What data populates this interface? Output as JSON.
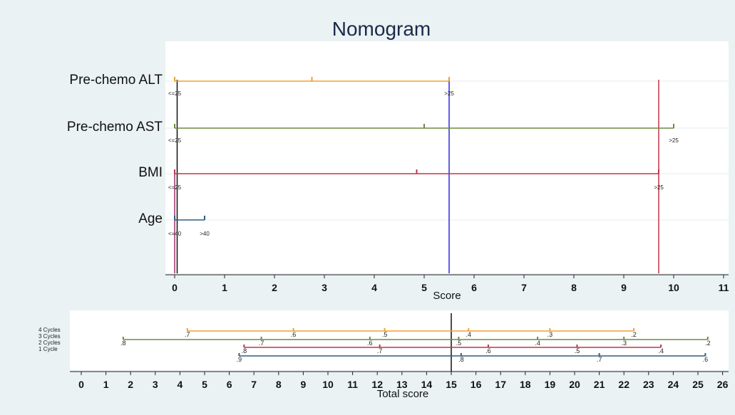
{
  "chart_data": [
    {
      "type": "nomogram",
      "title": "Nomogram",
      "xlabel": "Score",
      "xlim": [
        0,
        11
      ],
      "xticks": [
        0,
        1,
        2,
        3,
        4,
        5,
        6,
        7,
        8,
        9,
        10,
        11
      ],
      "variables": [
        {
          "name": "Pre-chemo ALT",
          "color": "#f0a030",
          "range": [
            0,
            5.5
          ],
          "tick_marks": [
            0,
            2.75,
            5.5
          ],
          "level_labels": [
            {
              "label": "<=25",
              "value": 0
            },
            {
              "label": ">25",
              "value": 5.5
            }
          ]
        },
        {
          "name": "Pre-chemo AST",
          "color": "#6b8c3e",
          "range": [
            0,
            10
          ],
          "tick_marks": [
            0,
            5,
            10
          ],
          "level_labels": [
            {
              "label": "<=25",
              "value": 0
            },
            {
              "label": ">25",
              "value": 10
            }
          ]
        },
        {
          "name": "BMI",
          "color": "#c0344a",
          "range": [
            0,
            9.7
          ],
          "tick_marks": [
            0,
            4.85,
            9.7
          ],
          "level_labels": [
            {
              "label": "<=25",
              "value": 0
            },
            {
              "label": ">25",
              "value": 9.7
            }
          ]
        },
        {
          "name": "Age",
          "color": "#2f5e80",
          "range": [
            0,
            0.6
          ],
          "tick_marks": [
            0,
            0.6
          ],
          "level_labels": [
            {
              "label": "<=40",
              "value": 0
            },
            {
              "label": ">40",
              "value": 0.6
            }
          ]
        }
      ],
      "reference_lines": [
        {
          "color": "#2b2bd6",
          "x": 5.5
        },
        {
          "color": "#c0344a",
          "x": 9.7
        },
        {
          "color": "#a0306a",
          "x": 0
        },
        {
          "color": "#111111",
          "x": 0.05
        }
      ]
    },
    {
      "type": "nomogram-probability",
      "xlabel": "Total score",
      "xlim": [
        0,
        26
      ],
      "xticks": [
        0,
        1,
        2,
        3,
        4,
        5,
        6,
        7,
        8,
        9,
        10,
        11,
        12,
        13,
        14,
        15,
        16,
        17,
        18,
        19,
        20,
        21,
        22,
        23,
        24,
        25,
        26
      ],
      "vertical_line_at": 15,
      "series": [
        {
          "name": "4 Cycles",
          "color": "#f0a030",
          "range": [
            4.3,
            22.4
          ],
          "ticks": [
            {
              "label": ".7",
              "x": 4.3
            },
            {
              "label": ".6",
              "x": 8.6
            },
            {
              "label": ".5",
              "x": 12.3
            },
            {
              "label": ".4",
              "x": 15.7
            },
            {
              "label": ".3",
              "x": 19.0
            },
            {
              "label": ".2",
              "x": 22.4
            }
          ]
        },
        {
          "name": "3 Cycles",
          "color": "#6b8c3e",
          "range": [
            1.7,
            25.4
          ],
          "ticks": [
            {
              "label": ".8",
              "x": 1.7
            },
            {
              "label": ".7",
              "x": 7.3
            },
            {
              "label": ".6",
              "x": 11.7
            },
            {
              "label": ".5",
              "x": 15.3
            },
            {
              "label": ".4",
              "x": 18.5
            },
            {
              "label": ".3",
              "x": 22.0
            },
            {
              "label": ".2",
              "x": 25.4
            }
          ]
        },
        {
          "name": "2 Cycles",
          "color": "#c0344a",
          "range": [
            6.6,
            23.5
          ],
          "ticks": [
            {
              "label": ".8",
              "x": 6.6
            },
            {
              "label": ".7",
              "x": 12.1
            },
            {
              "label": ".6",
              "x": 16.5
            },
            {
              "label": ".5",
              "x": 20.1
            },
            {
              "label": ".4",
              "x": 23.5
            }
          ]
        },
        {
          "name": "1 Cycle",
          "color": "#2f5e80",
          "range": [
            6.4,
            25.3
          ],
          "ticks": [
            {
              "label": ".9",
              "x": 6.4
            },
            {
              "label": ".8",
              "x": 15.4
            },
            {
              "label": ".7",
              "x": 21.0
            },
            {
              "label": ".6",
              "x": 25.3
            }
          ]
        }
      ]
    }
  ]
}
